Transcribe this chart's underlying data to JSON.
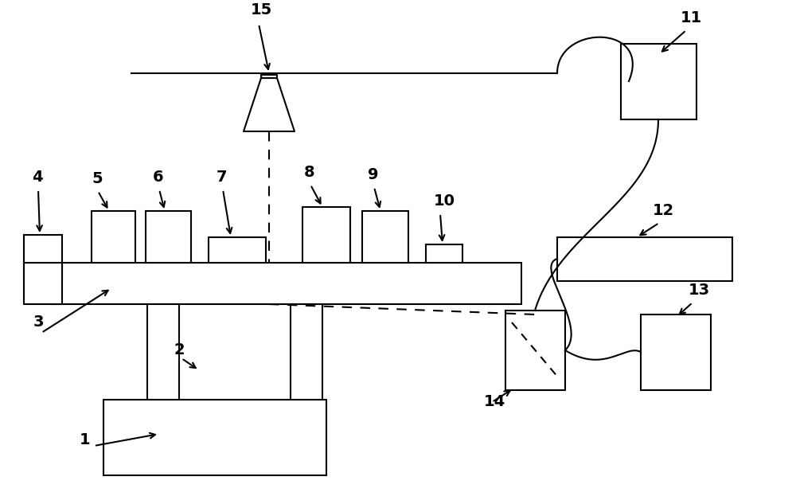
{
  "bg_color": "#ffffff",
  "lw": 1.5,
  "label_fontsize": 14,
  "label_fontweight": "bold",
  "figsize": [
    10.0,
    6.28
  ],
  "dpi": 100
}
